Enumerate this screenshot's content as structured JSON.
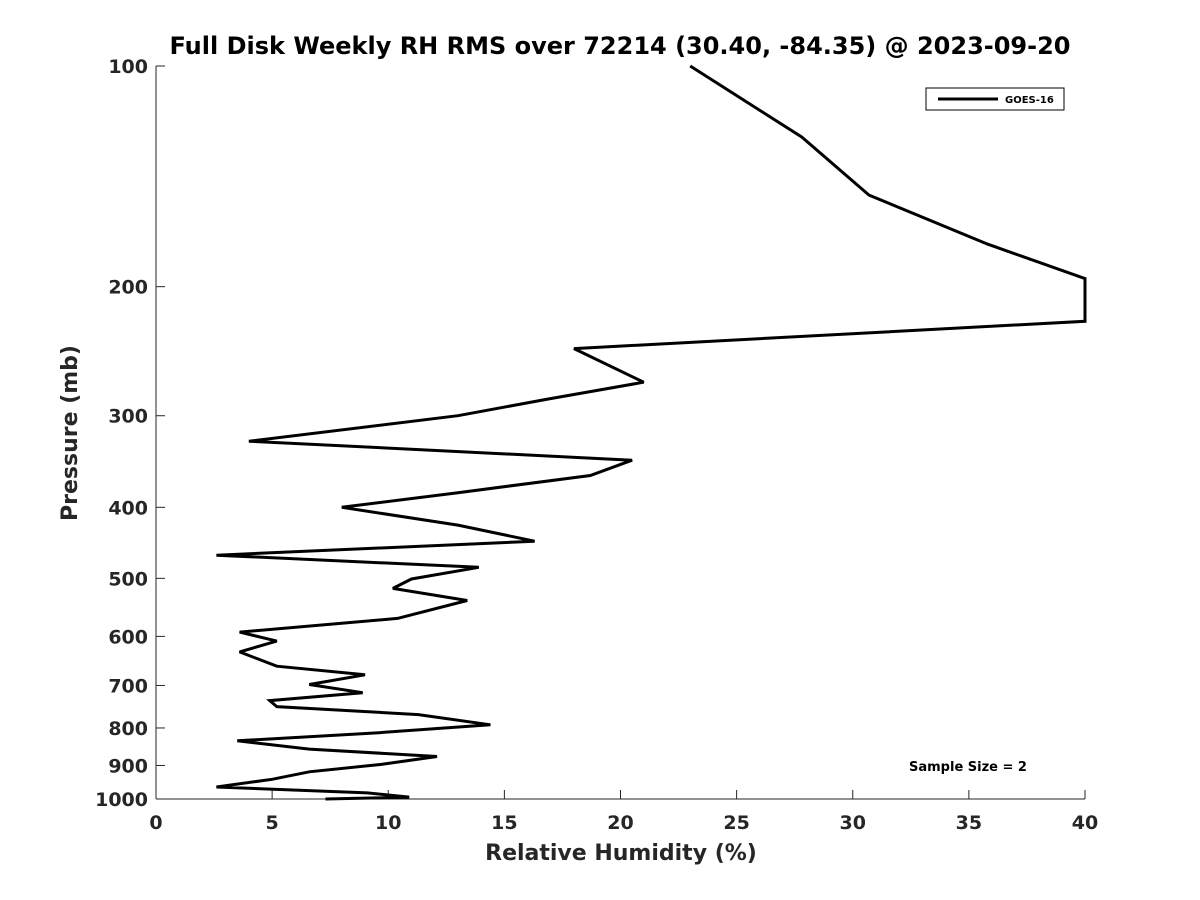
{
  "chart_data": {
    "type": "line",
    "title": "Full Disk Weekly RH RMS over 72214 (30.40, -84.35) @ 2023-09-20",
    "xlabel": "Relative Humidity (%)",
    "ylabel": "Pressure (mb)",
    "xlim": [
      0,
      40
    ],
    "ylim": [
      100,
      1000
    ],
    "y_scale": "log",
    "y_direction": "reversed",
    "x_ticks": [
      0,
      5,
      10,
      15,
      20,
      25,
      30,
      35,
      40
    ],
    "x_tick_labels": [
      "0",
      "5",
      "10",
      "15",
      "20",
      "25",
      "30",
      "35",
      "40"
    ],
    "y_ticks": [
      100,
      200,
      300,
      400,
      500,
      600,
      700,
      800,
      900,
      1000
    ],
    "y_tick_labels": [
      "100",
      "200",
      "300",
      "400",
      "500",
      "600",
      "700",
      "800",
      "900",
      "1000"
    ],
    "grid": false,
    "legend": {
      "position": "top-right",
      "entries": [
        "GOES-16"
      ]
    },
    "annotation": "Sample Size = 2",
    "line_color": "#000000",
    "series": [
      {
        "name": "GOES-16",
        "points": [
          [
            23.0,
            100
          ],
          [
            27.8,
            125
          ],
          [
            30.7,
            150
          ],
          [
            35.8,
            175
          ],
          [
            40.0,
            195
          ],
          [
            40.0,
            223
          ],
          [
            18.0,
            243
          ],
          [
            21.0,
            270
          ],
          [
            16.8,
            285
          ],
          [
            13.0,
            300
          ],
          [
            4.0,
            325
          ],
          [
            20.5,
            345
          ],
          [
            18.7,
            362
          ],
          [
            13.0,
            382
          ],
          [
            8.0,
            400
          ],
          [
            13.0,
            423
          ],
          [
            16.3,
            445
          ],
          [
            2.6,
            465
          ],
          [
            13.9,
            483
          ],
          [
            11.0,
            501
          ],
          [
            10.2,
            516
          ],
          [
            13.4,
            536
          ],
          [
            10.4,
            567
          ],
          [
            3.6,
            592
          ],
          [
            5.2,
            609
          ],
          [
            3.6,
            630
          ],
          [
            5.2,
            659
          ],
          [
            9.0,
            677
          ],
          [
            6.6,
            698
          ],
          [
            8.9,
            716
          ],
          [
            4.9,
            734
          ],
          [
            5.2,
            748
          ],
          [
            11.3,
            767
          ],
          [
            14.4,
            792
          ],
          [
            9.6,
            812
          ],
          [
            3.5,
            833
          ],
          [
            6.6,
            855
          ],
          [
            12.1,
            875
          ],
          [
            9.7,
            897
          ],
          [
            6.6,
            918
          ],
          [
            5.0,
            940
          ],
          [
            2.6,
            963
          ],
          [
            9.1,
            981
          ],
          [
            10.9,
            994
          ],
          [
            7.3,
            1006
          ]
        ]
      }
    ]
  }
}
